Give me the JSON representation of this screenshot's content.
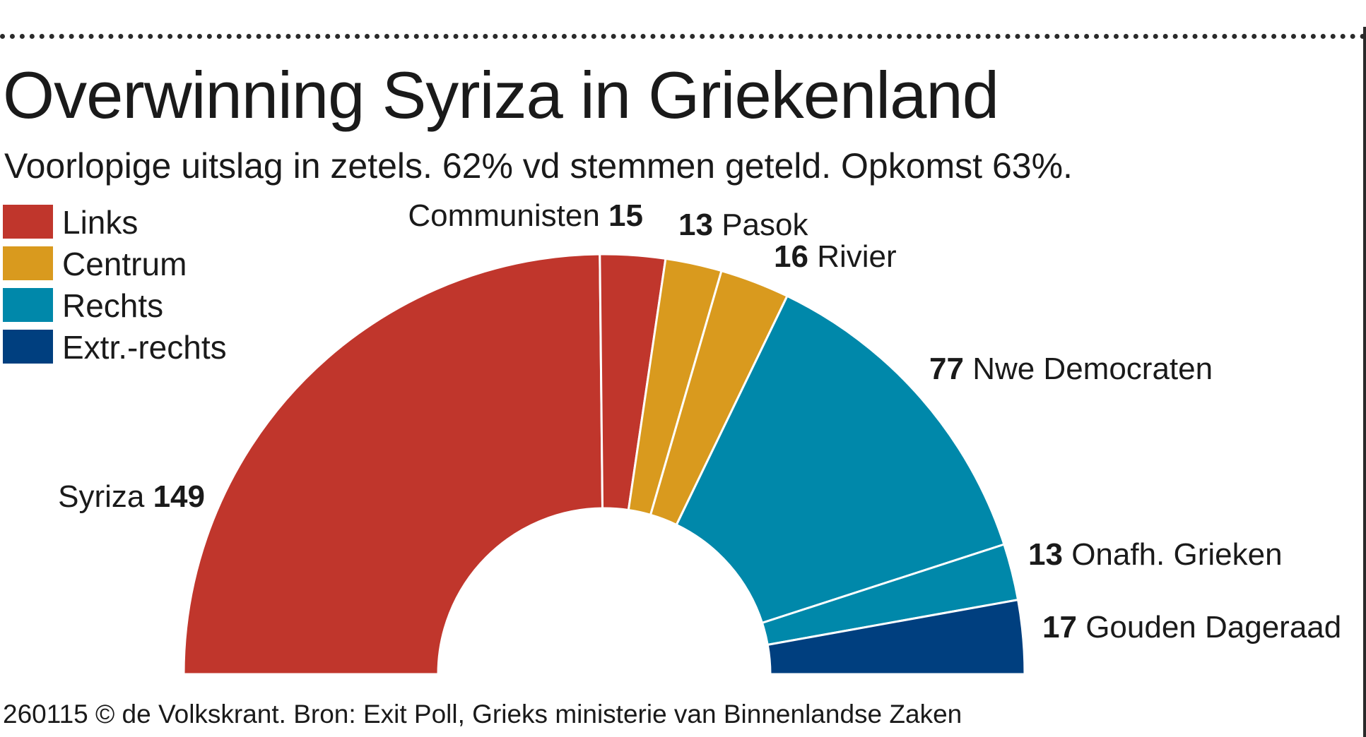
{
  "title": "Overwinning Syriza in Griekenland",
  "subtitle": "Voorlopige uitslag in zetels. 62% vd stemmen geteld. Opkomst 63%.",
  "footer": "260115 © de Volkskrant. Bron: Exit Poll, Grieks ministerie van Binnenlandse Zaken",
  "legend": [
    {
      "label": "Links",
      "color": "#c0362c"
    },
    {
      "label": "Centrum",
      "color": "#d99a1e"
    },
    {
      "label": "Rechts",
      "color": "#0088aa"
    },
    {
      "label": "Extr.-rechts",
      "color": "#003f7f"
    }
  ],
  "chart_data": {
    "type": "pie",
    "variant": "half-donut (parliament)",
    "total": 300,
    "slices": [
      {
        "party": "Syriza",
        "seats": 149,
        "group": "Links",
        "color": "#c0362c"
      },
      {
        "party": "Communisten",
        "seats": 15,
        "group": "Links",
        "color": "#c0362c"
      },
      {
        "party": "Pasok",
        "seats": 13,
        "group": "Centrum",
        "color": "#d99a1e"
      },
      {
        "party": "Rivier",
        "seats": 16,
        "group": "Centrum",
        "color": "#d99a1e"
      },
      {
        "party": "Nwe Democraten",
        "seats": 77,
        "group": "Rechts",
        "color": "#0088aa"
      },
      {
        "party": "Onafh. Grieken",
        "seats": 13,
        "group": "Rechts",
        "color": "#0088aa"
      },
      {
        "party": "Gouden Dageraad",
        "seats": 17,
        "group": "Extr.-rechts",
        "color": "#003f7f"
      }
    ]
  }
}
